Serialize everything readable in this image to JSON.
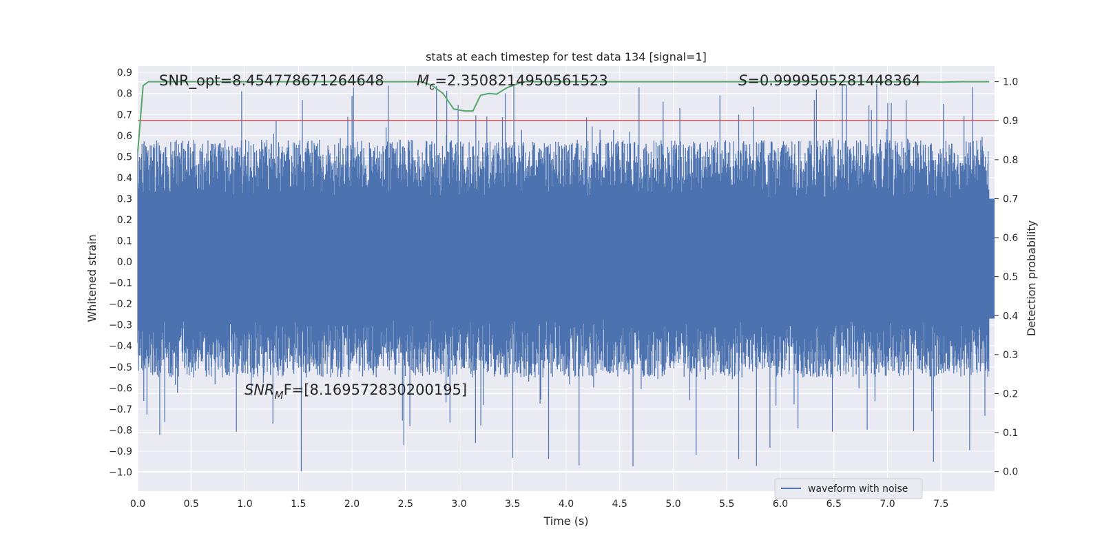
{
  "chart_data": {
    "type": "line",
    "title": "stats at each timestep for test data 134 [signal=1]",
    "xlabel": "Time (s)",
    "ylabel_left": "Whitened strain",
    "ylabel_right": "Detection probability",
    "xlim": [
      0.0,
      8.0
    ],
    "ylim_left": [
      -1.09,
      0.93
    ],
    "ylim_right": [
      -0.05,
      1.04
    ],
    "x_ticks": [
      0.0,
      0.5,
      1.0,
      1.5,
      2.0,
      2.5,
      3.0,
      3.5,
      4.0,
      4.5,
      5.0,
      5.5,
      6.0,
      6.5,
      7.0,
      7.5
    ],
    "y_ticks_left": [
      0.9,
      0.8,
      0.7,
      0.6,
      0.5,
      0.4,
      0.3,
      0.2,
      0.1,
      0.0,
      -0.1,
      -0.2,
      -0.3,
      -0.4,
      -0.5,
      -0.6,
      -0.7,
      -0.8,
      -0.9,
      -1.0
    ],
    "y_ticks_right": [
      1.0,
      0.9,
      0.8,
      0.7,
      0.6,
      0.5,
      0.4,
      0.3,
      0.2,
      0.1,
      0.0
    ],
    "legend": {
      "label": "waveform with noise",
      "placement": "lower-right"
    },
    "colors": {
      "waveform": "#4c72b0",
      "probability": "#55a868",
      "threshold": "#c44e52",
      "background": "#eaeaf2",
      "grid": "#ffffff"
    },
    "annotations": {
      "snr_opt": "SNR_opt=8.454778671264648",
      "mc_symbol": "M",
      "mc_sub": "c",
      "mc_value": "=2.3508214950561523",
      "s_symbol": "S",
      "s_value": "=0.9999505281448364",
      "snr_mf_symbol": "SNR",
      "snr_mf_sub": "M",
      "snr_mf_value": "F=[8.169572830200195]"
    },
    "threshold_probability": 0.9,
    "waveform": {
      "sample_count": 2400,
      "amplitude_range": [
        -1.0,
        0.85
      ],
      "core_range": [
        -0.27,
        0.3
      ],
      "description_note": "dense whitened noise"
    },
    "probability_series": {
      "x": [
        0.0,
        0.05,
        0.1,
        0.15,
        0.5,
        1.0,
        1.5,
        2.0,
        2.5,
        2.65,
        2.75,
        2.85,
        2.95,
        3.05,
        3.13,
        3.2,
        3.28,
        3.35,
        3.45,
        3.6,
        4.0,
        5.0,
        6.0,
        7.0,
        7.5,
        7.7,
        7.95
      ],
      "y": [
        0.82,
        0.99,
        1.0,
        1.0,
        1.0,
        1.0,
        1.0,
        1.0,
        1.0,
        1.0,
        0.99,
        0.97,
        0.93,
        0.925,
        0.925,
        0.965,
        0.97,
        0.968,
        0.985,
        1.0,
        1.0,
        1.0,
        1.0,
        1.0,
        0.999,
        1.0,
        1.0
      ]
    }
  }
}
